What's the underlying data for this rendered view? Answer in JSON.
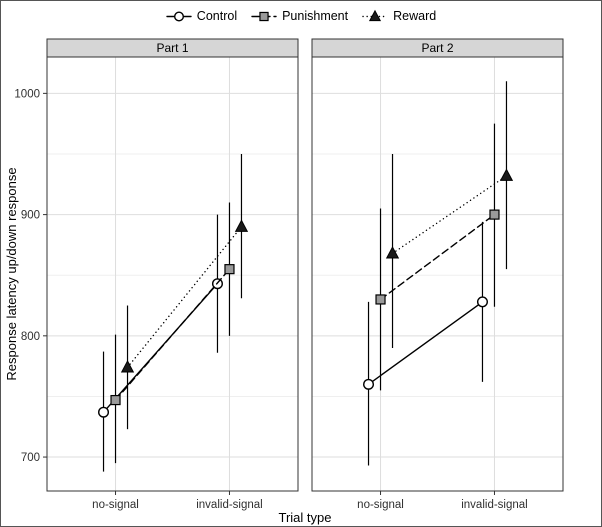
{
  "chart_data": {
    "type": "line",
    "title": "",
    "xlabel": "Trial type",
    "ylabel": "Response latency up/down response",
    "categories": [
      "no-signal",
      "invalid-signal"
    ],
    "yticks": [
      700,
      800,
      900,
      1000
    ],
    "yticks_minor": [
      750,
      850,
      950
    ],
    "ylim": [
      672,
      1030
    ],
    "grid": true,
    "legend_position": "top",
    "panels": [
      {
        "label": "Part 1",
        "series": [
          {
            "name": "Control",
            "marker": "circle",
            "line": "solid",
            "values": [
              737,
              843
            ],
            "err_low": [
              688,
              786
            ],
            "err_high": [
              787,
              900
            ]
          },
          {
            "name": "Punishment",
            "marker": "square",
            "line": "dashed",
            "values": [
              747,
              855
            ],
            "err_low": [
              695,
              800
            ],
            "err_high": [
              801,
              910
            ]
          },
          {
            "name": "Reward",
            "marker": "triangle",
            "line": "dotted",
            "values": [
              774,
              890
            ],
            "err_low": [
              723,
              831
            ],
            "err_high": [
              825,
              950
            ]
          }
        ]
      },
      {
        "label": "Part 2",
        "series": [
          {
            "name": "Control",
            "marker": "circle",
            "line": "solid",
            "values": [
              760,
              828
            ],
            "err_low": [
              693,
              762
            ],
            "err_high": [
              828,
              894
            ]
          },
          {
            "name": "Punishment",
            "marker": "square",
            "line": "dashed",
            "values": [
              830,
              900
            ],
            "err_low": [
              755,
              824
            ],
            "err_high": [
              905,
              975
            ]
          },
          {
            "name": "Reward",
            "marker": "triangle",
            "line": "dotted",
            "values": [
              868,
              932
            ],
            "err_low": [
              790,
              855
            ],
            "err_high": [
              950,
              1010
            ]
          }
        ]
      }
    ],
    "legend": [
      {
        "label": "Control",
        "marker": "circle",
        "line": "solid"
      },
      {
        "label": "Punishment",
        "marker": "square",
        "line": "dashed"
      },
      {
        "label": "Reward",
        "marker": "triangle",
        "line": "dotted"
      }
    ],
    "colors": {
      "control_fill": "#ffffff",
      "punishment_fill": "#9a9a9a",
      "reward_fill": "#1a1a1a",
      "stroke": "#000000",
      "grid_major": "#dedede",
      "grid_minor": "#efefef",
      "strip_bg": "#d6d6d6",
      "panel_border": "#333333",
      "tick_color": "#333333"
    }
  }
}
